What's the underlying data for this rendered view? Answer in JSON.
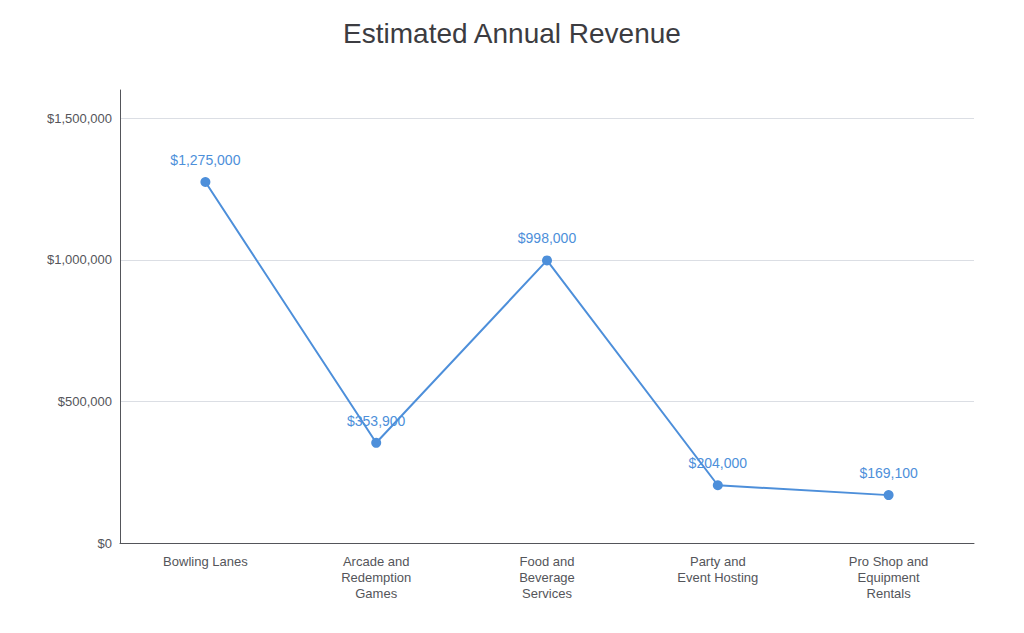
{
  "chart_data": {
    "type": "line",
    "title": "Estimated Annual Revenue",
    "categories": [
      "Bowling Lanes",
      "Arcade and\nRedemption\nGames",
      "Food and\nBeverage\nServices",
      "Party and\nEvent Hosting",
      "Pro Shop and\nEquipment\nRentals"
    ],
    "values": [
      1275000,
      353900,
      998000,
      204000,
      169100
    ],
    "value_labels": [
      "$1,275,000",
      "$353,900",
      "$998,000",
      "$204,000",
      "$169,100"
    ],
    "data_labels": true,
    "color": "#4d8fda",
    "marker": "circle",
    "ylim": [
      0,
      1600000
    ],
    "yticks": [
      {
        "value": 0,
        "label": "$0"
      },
      {
        "value": 500000,
        "label": "$500,000"
      },
      {
        "value": 1000000,
        "label": "$1,000,000"
      },
      {
        "value": 1500000,
        "label": "$1,500,000"
      }
    ],
    "grid": true
  }
}
